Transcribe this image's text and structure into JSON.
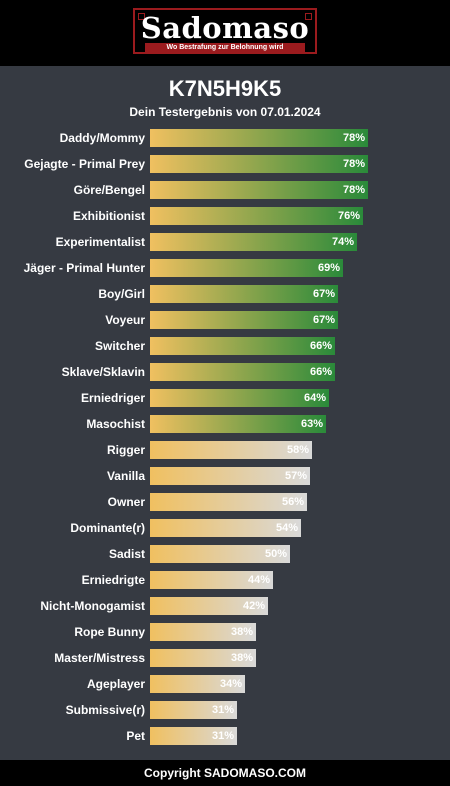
{
  "header": {
    "logo_text": "Sadomaso",
    "tagline": "Wo Bestrafung zur Belohnung wird"
  },
  "title": "K7N5H9K5",
  "subtitle": "Dein Testergebnis von 07.01.2024",
  "footer": "Copyright SADOMASO.COM",
  "colors": {
    "background": "#363a42",
    "bar_start": "#f0c060",
    "high_end": "#2a8a3a",
    "low_end": "#d9d9d9",
    "accent": "#9b1b1e"
  },
  "chart_data": {
    "type": "bar",
    "orientation": "horizontal",
    "xlim": [
      0,
      100
    ],
    "categories": [
      "Daddy/Mommy",
      "Gejagte - Primal Prey",
      "Göre/Bengel",
      "Exhibitionist",
      "Experimentalist",
      "Jäger - Primal Hunter",
      "Boy/Girl",
      "Voyeur",
      "Switcher",
      "Sklave/Sklavin",
      "Erniedriger",
      "Masochist",
      "Rigger",
      "Vanilla",
      "Owner",
      "Dominante(r)",
      "Sadist",
      "Erniedrigte",
      "Nicht-Monogamist",
      "Rope Bunny",
      "Master/Mistress",
      "Ageplayer",
      "Submissive(r)",
      "Pet"
    ],
    "values": [
      78,
      78,
      78,
      76,
      74,
      69,
      67,
      67,
      66,
      66,
      64,
      63,
      58,
      57,
      56,
      54,
      50,
      44,
      42,
      38,
      38,
      34,
      31,
      31
    ],
    "labels": [
      "78%",
      "78%",
      "78%",
      "76%",
      "74%",
      "69%",
      "67%",
      "67%",
      "66%",
      "66%",
      "64%",
      "63%",
      "58%",
      "57%",
      "56%",
      "54%",
      "50%",
      "44%",
      "42%",
      "38%",
      "38%",
      "34%",
      "31%",
      "31%"
    ]
  }
}
